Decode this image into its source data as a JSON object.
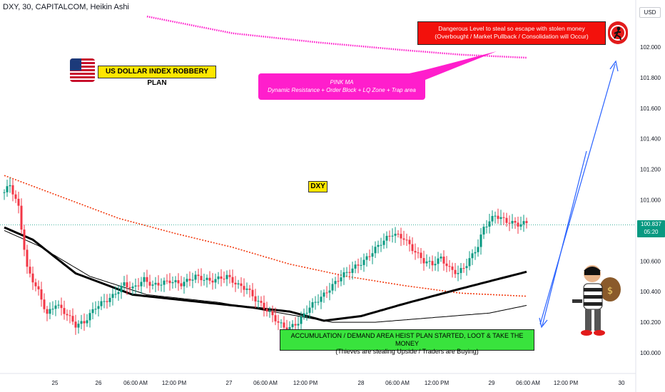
{
  "header": {
    "title": "DXY, 30, CAPITALCOM, Heikin Ashi"
  },
  "currency": "USD",
  "price_tag": {
    "price": "100.837",
    "countdown": "05:20",
    "color": "#089981"
  },
  "annotations": {
    "flag_label": "US DOLLAR INDEX ROBBERY PLAN",
    "pink_title": "PINK MA",
    "pink_text": "Dynamic Resistance + Order Block + LQ Zone + Trap area",
    "red_line1": "Dangerous Level to steal so escape with stolen money",
    "red_line2": "(Overbought / Market Pullback / Consolidation will Occur)",
    "green_line1": "ACCUMULATION / DEMAND AREA HEIST PLAN STARTED, LOOT & TAKE THE MONEY",
    "green_line2": "(Thieves are stealing Upside / Traders are Buying)",
    "dxy_label": "DXY"
  },
  "icons": {
    "flag": "us-flag-icon",
    "ninja": "ninja-icon",
    "thief": "thief-with-money-bag-icon"
  },
  "colors": {
    "up": "#089981",
    "down": "#f23645",
    "pink_ma": "#ff1ecc",
    "red_ma": "#f23a0f",
    "black_ma": "#000000",
    "arrow": "#2962ff"
  },
  "chart_data": {
    "type": "candlestick",
    "symbol": "DXY",
    "timeframe": "30",
    "exchange": "CAPITALCOM",
    "chart_style": "Heikin Ashi",
    "ylim": [
      99.9,
      102.15
    ],
    "y_ticks": [
      "102.000",
      "101.800",
      "101.600",
      "101.400",
      "101.200",
      "101.000",
      "100.800",
      "100.600",
      "100.400",
      "100.200",
      "100.000"
    ],
    "x_ticks": [
      "25",
      "26",
      "06:00 AM",
      "12:00 PM",
      "27",
      "06:00 AM",
      "12:00 PM",
      "28",
      "06:00 AM",
      "12:00 PM",
      "29",
      "06:00 AM",
      "12:00 PM",
      "30"
    ],
    "last_price": 100.837,
    "price_path": [
      [
        0,
        101.05
      ],
      [
        2,
        101.1
      ],
      [
        5,
        100.95
      ],
      [
        8,
        100.55
      ],
      [
        12,
        100.4
      ],
      [
        15,
        100.25
      ],
      [
        18,
        100.32
      ],
      [
        22,
        100.25
      ],
      [
        25,
        100.18
      ],
      [
        28,
        100.2
      ],
      [
        32,
        100.3
      ],
      [
        38,
        100.37
      ],
      [
        42,
        100.45
      ],
      [
        45,
        100.42
      ],
      [
        49,
        100.48
      ],
      [
        52,
        100.44
      ],
      [
        58,
        100.47
      ],
      [
        62,
        100.45
      ],
      [
        67,
        100.5
      ],
      [
        72,
        100.47
      ],
      [
        78,
        100.5
      ],
      [
        82,
        100.44
      ],
      [
        85,
        100.42
      ],
      [
        88,
        100.35
      ],
      [
        92,
        100.28
      ],
      [
        96,
        100.2
      ],
      [
        99,
        100.15
      ],
      [
        103,
        100.2
      ],
      [
        107,
        100.3
      ],
      [
        112,
        100.38
      ],
      [
        118,
        100.5
      ],
      [
        122,
        100.55
      ],
      [
        126,
        100.6
      ],
      [
        132,
        100.72
      ],
      [
        136,
        100.78
      ],
      [
        140,
        100.75
      ],
      [
        143,
        100.68
      ],
      [
        147,
        100.6
      ],
      [
        150,
        100.58
      ],
      [
        153,
        100.62
      ],
      [
        156,
        100.55
      ],
      [
        159,
        100.52
      ],
      [
        162,
        100.58
      ],
      [
        166,
        100.7
      ],
      [
        168,
        100.82
      ],
      [
        172,
        100.9
      ],
      [
        176,
        100.86
      ],
      [
        180,
        100.84
      ],
      [
        183,
        100.85
      ]
    ],
    "moving_averages": [
      {
        "label": "PINK MA",
        "color": "#ff1ecc",
        "points": [
          [
            50,
            102.2
          ],
          [
            80,
            102.09
          ],
          [
            110,
            102.03
          ],
          [
            140,
            101.98
          ],
          [
            160,
            101.95
          ],
          [
            183,
            101.93
          ]
        ]
      },
      {
        "color": "#f23a0f",
        "style": "dotted",
        "points": [
          [
            0,
            101.16
          ],
          [
            20,
            101.02
          ],
          [
            40,
            100.88
          ],
          [
            60,
            100.78
          ],
          [
            80,
            100.69
          ],
          [
            100,
            100.58
          ],
          [
            120,
            100.5
          ],
          [
            140,
            100.44
          ],
          [
            160,
            100.39
          ],
          [
            183,
            100.37
          ]
        ]
      },
      {
        "color": "#000000",
        "points": [
          [
            0,
            100.82
          ],
          [
            10,
            100.74
          ],
          [
            25,
            100.52
          ],
          [
            45,
            100.38
          ],
          [
            70,
            100.33
          ],
          [
            100,
            100.27
          ],
          [
            112,
            100.21
          ],
          [
            125,
            100.24
          ],
          [
            140,
            100.32
          ],
          [
            160,
            100.42
          ],
          [
            183,
            100.53
          ]
        ]
      },
      {
        "color": "#000000",
        "style": "thin",
        "points": [
          [
            0,
            100.8
          ],
          [
            12,
            100.7
          ],
          [
            30,
            100.5
          ],
          [
            50,
            100.38
          ],
          [
            75,
            100.33
          ],
          [
            100,
            100.25
          ],
          [
            115,
            100.2
          ],
          [
            130,
            100.2
          ],
          [
            150,
            100.23
          ],
          [
            170,
            100.26
          ],
          [
            183,
            100.31
          ]
        ]
      }
    ]
  }
}
